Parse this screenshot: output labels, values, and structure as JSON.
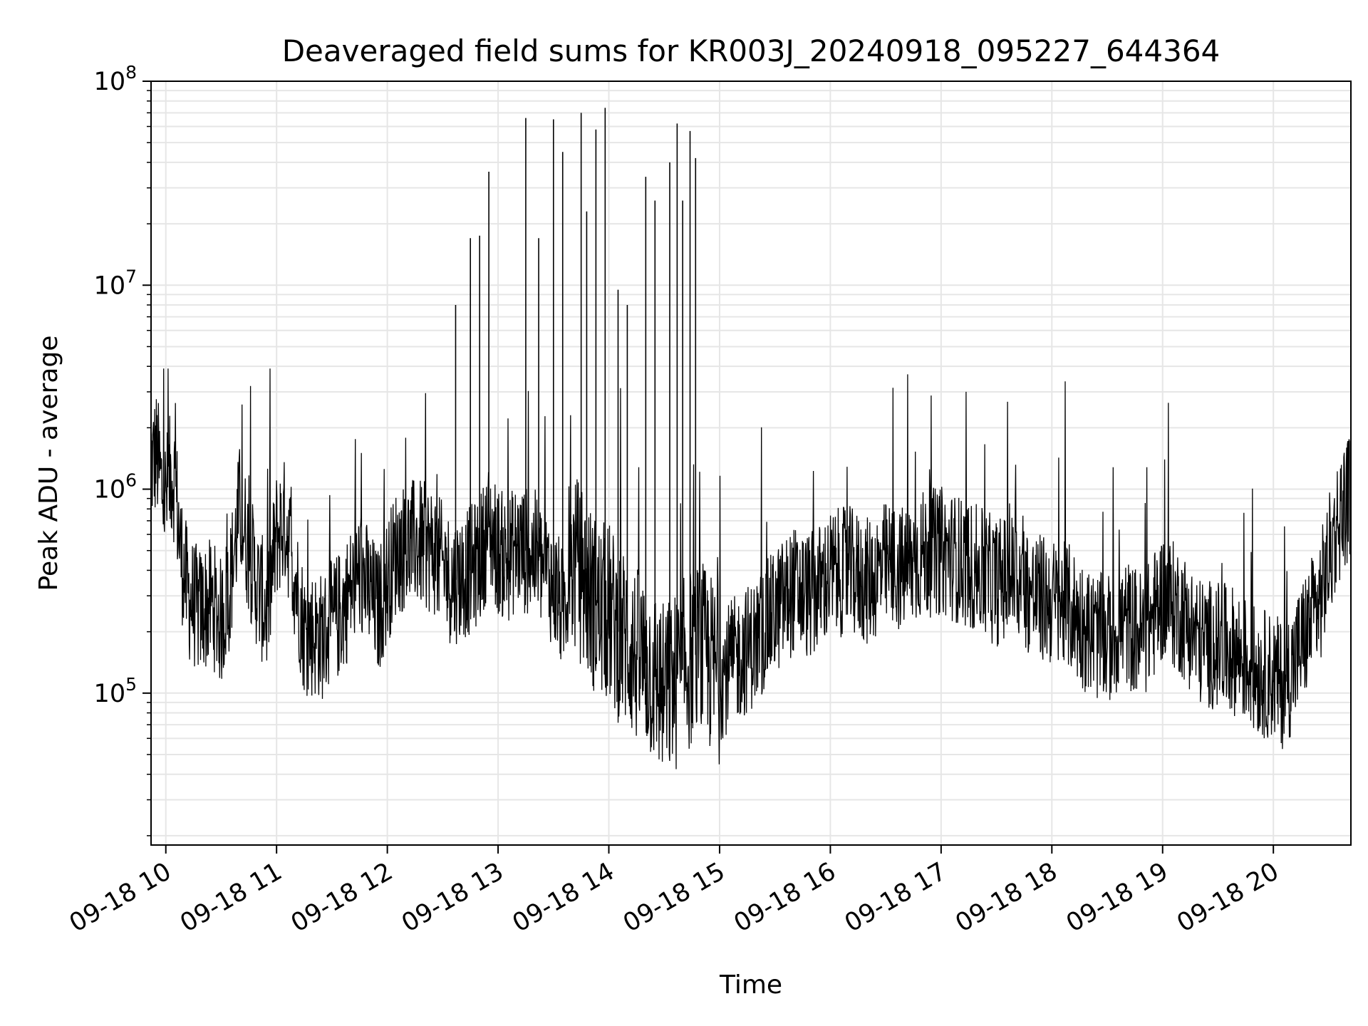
{
  "chart_data": {
    "type": "line",
    "title": "Deaveraged field sums for KR003J_20240918_095227_644364",
    "xlabel": "Time",
    "ylabel": "Peak ADU - average",
    "yscale": "log",
    "ylim": [
      18000,
      100000000
    ],
    "xlim": [
      "2024-09-18 09:52",
      "2024-09-18 20:42"
    ],
    "grid": true,
    "line_color": "#000000",
    "grid_color": "#e6e6e6",
    "x_ticks": [
      {
        "value": "2024-09-18 10:00",
        "label": "09-18 10"
      },
      {
        "value": "2024-09-18 11:00",
        "label": "09-18 11"
      },
      {
        "value": "2024-09-18 12:00",
        "label": "09-18 12"
      },
      {
        "value": "2024-09-18 13:00",
        "label": "09-18 13"
      },
      {
        "value": "2024-09-18 14:00",
        "label": "09-18 14"
      },
      {
        "value": "2024-09-18 15:00",
        "label": "09-18 15"
      },
      {
        "value": "2024-09-18 16:00",
        "label": "09-18 16"
      },
      {
        "value": "2024-09-18 17:00",
        "label": "09-18 17"
      },
      {
        "value": "2024-09-18 18:00",
        "label": "09-18 18"
      },
      {
        "value": "2024-09-18 19:00",
        "label": "09-18 19"
      },
      {
        "value": "2024-09-18 20:00",
        "label": "09-18 20"
      }
    ],
    "y_ticks": [
      {
        "value": 100000,
        "base": "10",
        "exp": "5"
      },
      {
        "value": 1000000,
        "base": "10",
        "exp": "6"
      },
      {
        "value": 10000000,
        "base": "10",
        "exp": "7"
      },
      {
        "value": 100000000,
        "base": "10",
        "exp": "8"
      }
    ],
    "series": [
      {
        "x": [
          "2024-09-18 09:52",
          "2024-09-18 09:55",
          "2024-09-18 09:58",
          "2024-09-18 10:00",
          "2024-09-18 10:03",
          "2024-09-18 10:05",
          "2024-09-18 10:08",
          "2024-09-18 10:12",
          "2024-09-18 10:18",
          "2024-09-18 10:25",
          "2024-09-18 10:30",
          "2024-09-18 10:35",
          "2024-09-18 10:40",
          "2024-09-18 10:45",
          "2024-09-18 10:50",
          "2024-09-18 10:55",
          "2024-09-18 11:00",
          "2024-09-18 11:05",
          "2024-09-18 11:15",
          "2024-09-18 11:25",
          "2024-09-18 11:35",
          "2024-09-18 11:45",
          "2024-09-18 11:55",
          "2024-09-18 12:05",
          "2024-09-18 12:15",
          "2024-09-18 12:25",
          "2024-09-18 12:35",
          "2024-09-18 12:45",
          "2024-09-18 12:50",
          "2024-09-18 12:55",
          "2024-09-18 13:00",
          "2024-09-18 13:05",
          "2024-09-18 13:10",
          "2024-09-18 13:15",
          "2024-09-18 13:20",
          "2024-09-18 13:25",
          "2024-09-18 13:30",
          "2024-09-18 13:35",
          "2024-09-18 13:40",
          "2024-09-18 13:45",
          "2024-09-18 13:50",
          "2024-09-18 13:55",
          "2024-09-18 14:00",
          "2024-09-18 14:05",
          "2024-09-18 14:10",
          "2024-09-18 14:15",
          "2024-09-18 14:20",
          "2024-09-18 14:25",
          "2024-09-18 14:30",
          "2024-09-18 14:35",
          "2024-09-18 14:40",
          "2024-09-18 14:45",
          "2024-09-18 14:50",
          "2024-09-18 14:55",
          "2024-09-18 15:00",
          "2024-09-18 15:10",
          "2024-09-18 15:20",
          "2024-09-18 15:30",
          "2024-09-18 15:40",
          "2024-09-18 15:50",
          "2024-09-18 16:00",
          "2024-09-18 16:10",
          "2024-09-18 16:20",
          "2024-09-18 16:30",
          "2024-09-18 16:40",
          "2024-09-18 16:50",
          "2024-09-18 17:00",
          "2024-09-18 17:10",
          "2024-09-18 17:20",
          "2024-09-18 17:30",
          "2024-09-18 17:40",
          "2024-09-18 17:50",
          "2024-09-18 18:00",
          "2024-09-18 18:10",
          "2024-09-18 18:20",
          "2024-09-18 18:30",
          "2024-09-18 18:40",
          "2024-09-18 18:50",
          "2024-09-18 19:00",
          "2024-09-18 19:10",
          "2024-09-18 19:20",
          "2024-09-18 19:30",
          "2024-09-18 19:40",
          "2024-09-18 19:50",
          "2024-09-18 20:00",
          "2024-09-18 20:05",
          "2024-09-18 20:10",
          "2024-09-18 20:15",
          "2024-09-18 20:20",
          "2024-09-18 20:25",
          "2024-09-18 20:30",
          "2024-09-18 20:35",
          "2024-09-18 20:40",
          "2024-09-18 20:42"
        ],
        "y": [
          1300000,
          1500000,
          1000000,
          900000,
          1200000,
          1100000,
          500000,
          300000,
          250000,
          280000,
          220000,
          350000,
          800000,
          500000,
          320000,
          250000,
          600000,
          700000,
          200000,
          190000,
          250000,
          400000,
          250000,
          500000,
          550000,
          500000,
          350000,
          400000,
          450000,
          650000,
          500000,
          450000,
          520000,
          500000,
          480000,
          400000,
          350000,
          250000,
          450000,
          380000,
          300000,
          250000,
          250000,
          200000,
          180000,
          150000,
          140000,
          120000,
          100000,
          110000,
          130000,
          150000,
          160000,
          140000,
          120000,
          150000,
          180000,
          250000,
          320000,
          300000,
          380000,
          400000,
          350000,
          420000,
          400000,
          480000,
          500000,
          450000,
          400000,
          350000,
          380000,
          300000,
          280000,
          260000,
          200000,
          180000,
          220000,
          190000,
          300000,
          250000,
          180000,
          170000,
          160000,
          130000,
          120000,
          110000,
          130000,
          170000,
          220000,
          280000,
          450000,
          700000,
          900000,
          850000
        ]
      },
      {
        "name": "",
        "x": [
          "2024-09-18 12:37",
          "2024-09-18 12:45",
          "2024-09-18 12:50",
          "2024-09-18 12:55",
          "2024-09-18 13:15",
          "2024-09-18 13:22",
          "2024-09-18 13:30",
          "2024-09-18 13:35",
          "2024-09-18 13:45",
          "2024-09-18 13:48",
          "2024-09-18 13:53",
          "2024-09-18 13:58",
          "2024-09-18 14:05",
          "2024-09-18 14:10",
          "2024-09-18 14:20",
          "2024-09-18 14:25",
          "2024-09-18 14:33",
          "2024-09-18 14:37",
          "2024-09-18 14:40",
          "2024-09-18 14:44",
          "2024-09-18 14:47"
        ],
        "y": [
          8000000,
          17000000,
          17500000,
          36000000,
          66000000,
          17000000,
          65000000,
          45000000,
          70000000,
          23000000,
          58000000,
          74000000,
          9500000,
          8000000,
          34000000,
          26000000,
          40000000,
          62000000,
          26000000,
          57000000,
          42000000
        ]
      }
    ]
  }
}
